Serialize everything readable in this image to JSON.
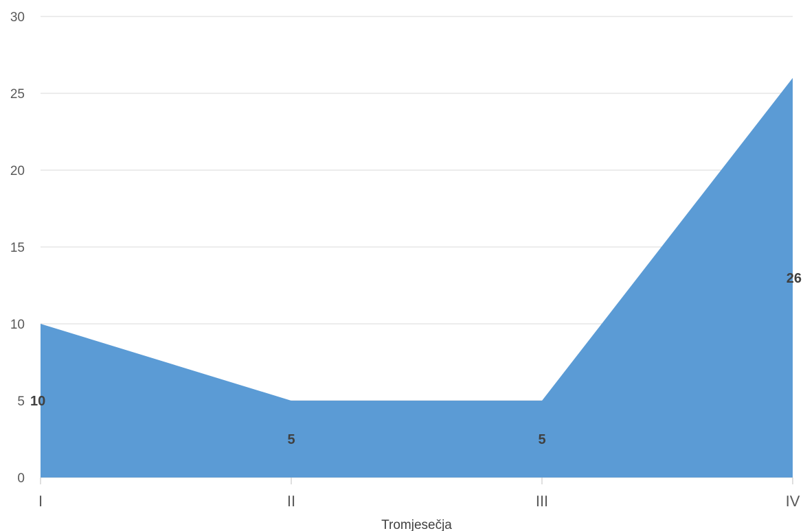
{
  "chart_data": {
    "type": "area",
    "categories": [
      "I",
      "II",
      "III",
      "IV"
    ],
    "series": [
      {
        "values": [
          10,
          5,
          5,
          26
        ],
        "color": "#5b9bd5"
      }
    ],
    "data_labels": [
      "10",
      "5",
      "5",
      "26"
    ],
    "title": "",
    "xlabel": "Tromjesečja",
    "ylabel": "",
    "ylim": [
      0,
      30
    ],
    "yticks": [
      0,
      5,
      10,
      15,
      20,
      25,
      30
    ],
    "grid": true,
    "legend": "none"
  }
}
